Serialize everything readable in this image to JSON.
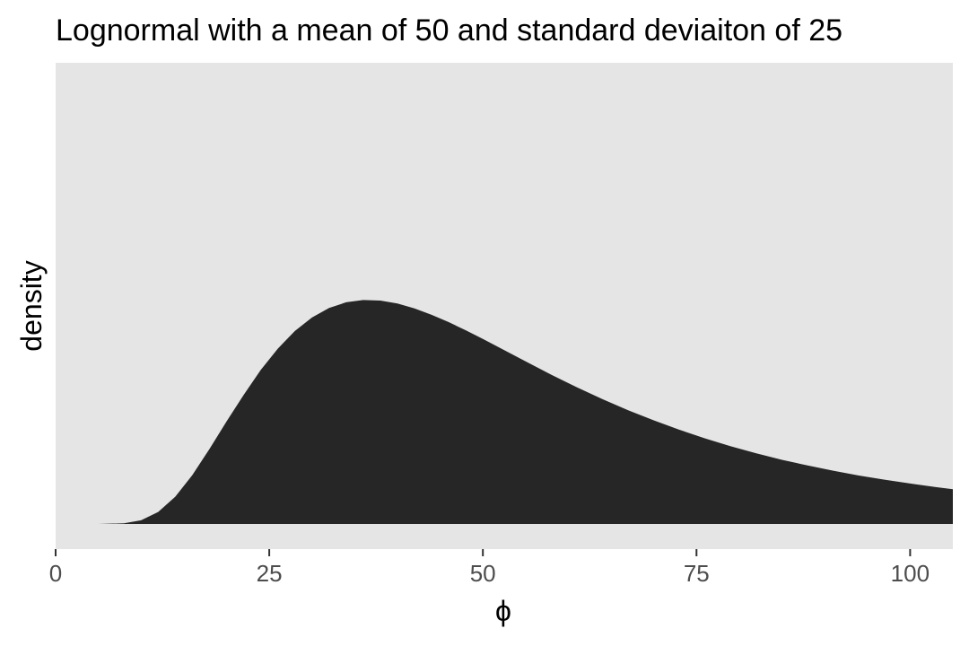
{
  "chart_data": {
    "type": "area",
    "title": "Lognormal with a mean of 50 and standard deviaiton of 25",
    "xlabel": "ϕ",
    "ylabel": "density",
    "xlim": [
      0,
      105
    ],
    "ylim": [
      0,
      0.0285
    ],
    "x_ticks": [
      0,
      25,
      50,
      75,
      100
    ],
    "x_tick_labels": [
      "0",
      "25",
      "50",
      "75",
      "100"
    ],
    "y_ticks_shown": false,
    "grid": false,
    "legend": "none",
    "panel_background": "#e5e5e5",
    "fill_color": "#262626",
    "series": [
      {
        "x": [
          5,
          8,
          10,
          12,
          14,
          16,
          18,
          20,
          22,
          24,
          26,
          28,
          30,
          32,
          34,
          36,
          38,
          40,
          42,
          44,
          46,
          48,
          50,
          52,
          55,
          58,
          61,
          64,
          67,
          70,
          73,
          76,
          79,
          82,
          85,
          88,
          91,
          94,
          97,
          100,
          103,
          105
        ],
        "y": [
          0.0,
          4e-05,
          0.00024,
          0.00078,
          0.00177,
          0.00318,
          0.00487,
          0.00666,
          0.00838,
          0.01,
          0.01139,
          0.01254,
          0.01341,
          0.01403,
          0.0144,
          0.01455,
          0.01451,
          0.01432,
          0.014,
          0.01359,
          0.01311,
          0.01258,
          0.01202,
          0.01144,
          0.01056,
          0.0097,
          0.00888,
          0.00811,
          0.00739,
          0.00673,
          0.00612,
          0.00556,
          0.00505,
          0.00459,
          0.00417,
          0.0038,
          0.00346,
          0.00315,
          0.00288,
          0.00263,
          0.0024,
          0.00226
        ]
      }
    ]
  }
}
